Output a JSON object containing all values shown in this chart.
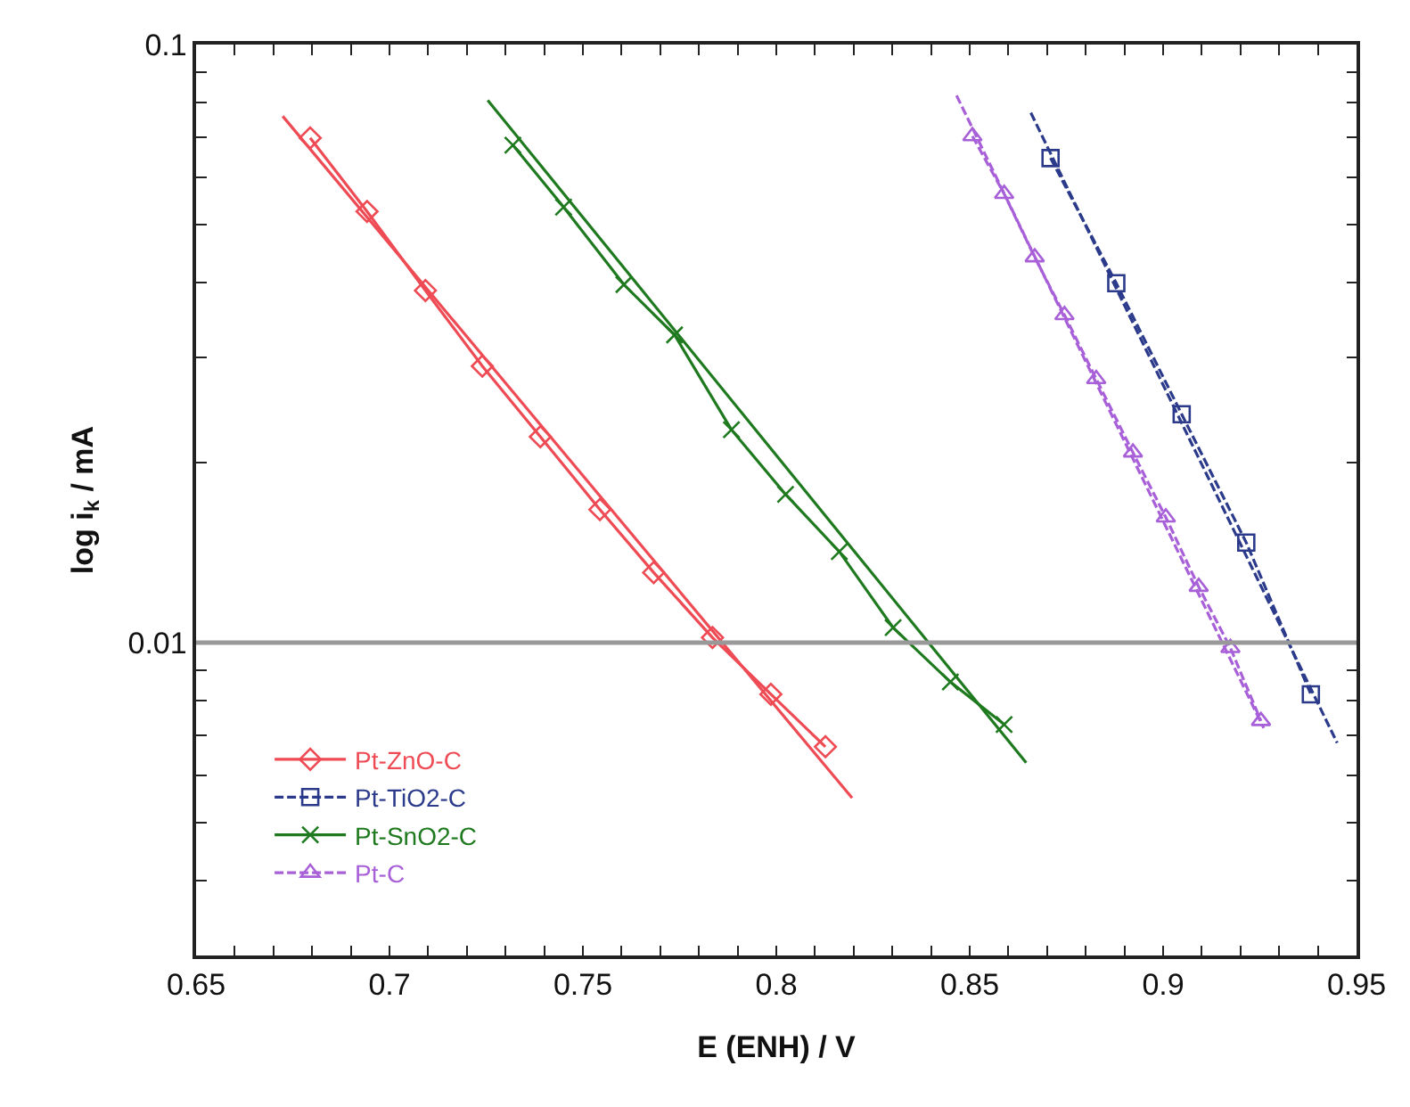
{
  "chart_data": {
    "type": "line",
    "xlabel": "E (ENH) / V",
    "ylabel": "log i$_{k}$ / mA",
    "log": "y",
    "xlim": [
      0.65,
      0.95
    ],
    "ylim": [
      0.003,
      0.1
    ],
    "xticks": [
      0.65,
      {
        "value": 0.66,
        "label": null
      },
      {
        "value": 0.67,
        "label": null
      },
      {
        "value": 0.68,
        "label": null
      },
      {
        "value": 0.69,
        "label": null
      },
      0.7,
      {
        "value": 0.71,
        "label": null
      },
      {
        "value": 0.72,
        "label": null
      },
      {
        "value": 0.73,
        "label": null
      },
      {
        "value": 0.74,
        "label": null
      },
      0.75,
      {
        "value": 0.76,
        "label": null
      },
      {
        "value": 0.77,
        "label": null
      },
      {
        "value": 0.78,
        "label": null
      },
      {
        "value": 0.79,
        "label": null
      },
      0.8,
      {
        "value": 0.81,
        "label": null
      },
      {
        "value": 0.82,
        "label": null
      },
      {
        "value": 0.83,
        "label": null
      },
      {
        "value": 0.84,
        "label": null
      },
      0.85,
      {
        "value": 0.86,
        "label": null
      },
      {
        "value": 0.87,
        "label": null
      },
      {
        "value": 0.88,
        "label": null
      },
      {
        "value": 0.89,
        "label": null
      },
      0.9,
      {
        "value": 0.91,
        "label": null
      },
      {
        "value": 0.92,
        "label": null
      },
      {
        "value": 0.93,
        "label": null
      },
      {
        "value": 0.94,
        "label": null
      },
      0.95
    ],
    "yticks": [
      {
        "value": 0.003,
        "label": null
      },
      {
        "value": 0.004,
        "label": null
      },
      {
        "value": 0.005,
        "label": null
      },
      {
        "value": 0.006,
        "label": null
      },
      {
        "value": 0.007,
        "label": null
      },
      {
        "value": 0.008,
        "label": null
      },
      {
        "value": 0.009,
        "label": null
      },
      0.01,
      {
        "value": 0.02,
        "label": null
      },
      {
        "value": 0.03,
        "label": null
      },
      {
        "value": 0.04,
        "label": null
      },
      {
        "value": 0.05,
        "label": null
      },
      {
        "value": 0.06,
        "label": null
      },
      {
        "value": 0.07,
        "label": null
      },
      {
        "value": 0.08,
        "label": null
      },
      {
        "value": 0.09,
        "label": null
      },
      0.1
    ],
    "legend": "bottom left",
    "ref_lines": [
      {
        "axis": "y",
        "value": 0.01,
        "color": "#999999"
      }
    ],
    "series": [
      {
        "name": "Pt-ZnO-C",
        "color": "#ee4b55",
        "marker": "diamond",
        "line_style": "solid",
        "x": [
          0.6795,
          0.6942,
          0.7093,
          0.724,
          0.739,
          0.7544,
          0.7683,
          0.7835,
          0.7986,
          0.8127
        ],
        "values": [
          0.0698,
          0.0526,
          0.0388,
          0.029,
          0.0221,
          0.0167,
          0.0131,
          0.0102,
          0.0082,
          0.0067
        ]
      },
      {
        "name": "Pt-TiO2-C",
        "color": "#2b3a8a",
        "marker": "square",
        "line_style": "dashed",
        "x": [
          0.8709,
          0.8879,
          0.9048,
          0.9215,
          0.9382
        ],
        "values": [
          0.0646,
          0.0399,
          0.0241,
          0.0147,
          0.0082
        ]
      },
      {
        "name": "Pt-SnO2-C",
        "color": "#1f7a1f",
        "marker": "cross",
        "line_style": "solid",
        "x": [
          0.7319,
          0.745,
          0.7606,
          0.7737,
          0.7884,
          0.8024,
          0.8163,
          0.8302,
          0.845,
          0.8589
        ],
        "values": [
          0.0679,
          0.0535,
          0.0397,
          0.0327,
          0.0227,
          0.0177,
          0.0142,
          0.0106,
          0.0086,
          0.0073
        ]
      },
      {
        "name": "Pt-C",
        "color": "#a860d8",
        "marker": "triangle",
        "line_style": "dashed",
        "x": [
          0.8507,
          0.8589,
          0.8668,
          0.8745,
          0.8827,
          0.8922,
          0.9007,
          0.9092,
          0.9174,
          0.9253
        ],
        "values": [
          0.0703,
          0.0563,
          0.0441,
          0.0353,
          0.0276,
          0.0208,
          0.0162,
          0.0124,
          0.0098,
          0.0074
        ]
      },
      {
        "color": "#ee4b55",
        "marker": "none",
        "line_style": "solid",
        "x": [
          0.6724,
          0.8196
        ],
        "values": [
          0.0759,
          0.0055
        ]
      },
      {
        "color": "#2b3a8a",
        "marker": "none",
        "line_style": "dashed",
        "x": [
          0.8658,
          0.945
        ],
        "values": [
          0.0769,
          0.0068
        ]
      },
      {
        "color": "#1f7a1f",
        "marker": "none",
        "line_style": "solid",
        "x": [
          0.7254,
          0.8646
        ],
        "values": [
          0.0807,
          0.0063
        ]
      },
      {
        "color": "#a860d8",
        "marker": "none",
        "line_style": "dashed",
        "x": [
          0.8466,
          0.926
        ],
        "values": [
          0.0822,
          0.0072
        ]
      }
    ]
  }
}
